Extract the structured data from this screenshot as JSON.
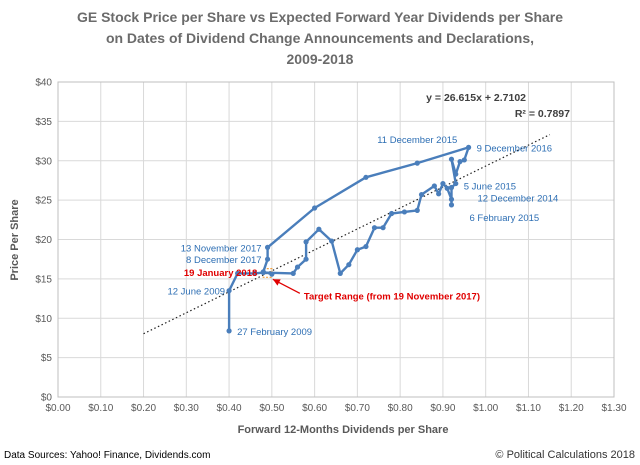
{
  "chart_data": {
    "type": "line",
    "title_lines": [
      "GE Stock Price per Share vs Expected Forward Year Dividends per Share",
      "on Dates of Dividend Change Announcements and Declarations,",
      "2009-2018"
    ],
    "xlabel": "Forward 12-Months Dividends per Share",
    "ylabel": "Price Per Share",
    "xlim": [
      0,
      1.3
    ],
    "ylim": [
      0,
      40
    ],
    "x_ticks": [
      "$0.00",
      "$0.10",
      "$0.20",
      "$0.30",
      "$0.40",
      "$0.50",
      "$0.60",
      "$0.70",
      "$0.80",
      "$0.90",
      "$1.00",
      "$1.10",
      "$1.20",
      "$1.30"
    ],
    "y_ticks": [
      "$0",
      "$5",
      "$10",
      "$15",
      "$20",
      "$25",
      "$30",
      "$35",
      "$40"
    ],
    "grid": true,
    "series": [
      {
        "color": "#4a7ebb",
        "points": [
          [
            0.4,
            8.4
          ],
          [
            0.4,
            13.5
          ],
          [
            0.42,
            15.7
          ],
          [
            0.46,
            15.7
          ],
          [
            0.48,
            15.8
          ],
          [
            0.55,
            15.7
          ],
          [
            0.56,
            16.5
          ],
          [
            0.58,
            17.5
          ],
          [
            0.58,
            19.7
          ],
          [
            0.61,
            21.3
          ],
          [
            0.64,
            19.8
          ],
          [
            0.66,
            15.7
          ],
          [
            0.68,
            16.8
          ],
          [
            0.7,
            18.7
          ],
          [
            0.72,
            19.1
          ],
          [
            0.74,
            21.5
          ],
          [
            0.76,
            21.5
          ],
          [
            0.78,
            23.3
          ],
          [
            0.81,
            23.5
          ],
          [
            0.84,
            23.7
          ],
          [
            0.85,
            25.7
          ],
          [
            0.88,
            26.8
          ],
          [
            0.89,
            25.8
          ],
          [
            0.9,
            27.1
          ],
          [
            0.91,
            26.5
          ],
          [
            0.92,
            25.1
          ],
          [
            0.92,
            24.4
          ],
          [
            0.92,
            26.6
          ],
          [
            0.93,
            27.1
          ],
          [
            0.92,
            30.2
          ],
          [
            0.93,
            28.3
          ],
          [
            0.94,
            29.9
          ],
          [
            0.95,
            30.1
          ],
          [
            0.96,
            31.7
          ],
          [
            0.84,
            29.7
          ],
          [
            0.72,
            27.9
          ],
          [
            0.6,
            24.0
          ],
          [
            0.49,
            19.0
          ],
          [
            0.49,
            17.5
          ],
          [
            0.48,
            15.9
          ],
          [
            0.5,
            15.6
          ]
        ]
      }
    ],
    "trendline": {
      "slope": 26.615,
      "intercept": 2.7102,
      "x_range": [
        0.2,
        1.15
      ],
      "equation": "y = 26.615x + 2.7102",
      "r2": "R² = 0.7897"
    },
    "target_range": {
      "x": [
        0.48,
        0.5
      ],
      "y": [
        15.2,
        16.3
      ]
    },
    "annotations": [
      {
        "text": "27 February 2009",
        "x": 0.4,
        "y": 8.4,
        "anchor": "start",
        "dx": 8,
        "dy": 4,
        "color": "blue"
      },
      {
        "text": "12 June 2009",
        "x": 0.4,
        "y": 13.5,
        "anchor": "end",
        "dx": -4,
        "dy": 4,
        "color": "blue"
      },
      {
        "text": "13 November 2017",
        "x": 0.49,
        "y": 19.0,
        "anchor": "end",
        "dx": -6,
        "dy": 4,
        "color": "blue"
      },
      {
        "text": "8 December 2017",
        "x": 0.49,
        "y": 17.5,
        "anchor": "end",
        "dx": -6,
        "dy": 4,
        "color": "blue"
      },
      {
        "text": "19 January 2018",
        "x": 0.48,
        "y": 15.9,
        "anchor": "end",
        "dx": -6,
        "dy": 4,
        "color": "red"
      },
      {
        "text": "11 December 2015",
        "x": 0.84,
        "y": 29.7,
        "anchor": "middle",
        "dx": 0,
        "dy": -20,
        "color": "blue"
      },
      {
        "text": "9 December 2016",
        "x": 0.96,
        "y": 31.7,
        "anchor": "start",
        "dx": 8,
        "dy": 4,
        "color": "blue"
      },
      {
        "text": "5 June 2015",
        "x": 0.93,
        "y": 27.1,
        "anchor": "start",
        "dx": 8,
        "dy": 6,
        "color": "blue"
      },
      {
        "text": "12 December 2014",
        "x": 0.92,
        "y": 25.1,
        "anchor": "start",
        "dx": 26,
        "dy": 2,
        "color": "blue"
      },
      {
        "text": "6 February  2015",
        "x": 0.92,
        "y": 24.4,
        "anchor": "start",
        "dx": 18,
        "dy": 16,
        "color": "blue"
      }
    ],
    "target_label": "Target Range (from 19 November 2017)"
  },
  "footer": {
    "sources": "Data Sources: Yahoo! Finance, Dividends.com",
    "copyright": "© Political Calculations 2018"
  }
}
